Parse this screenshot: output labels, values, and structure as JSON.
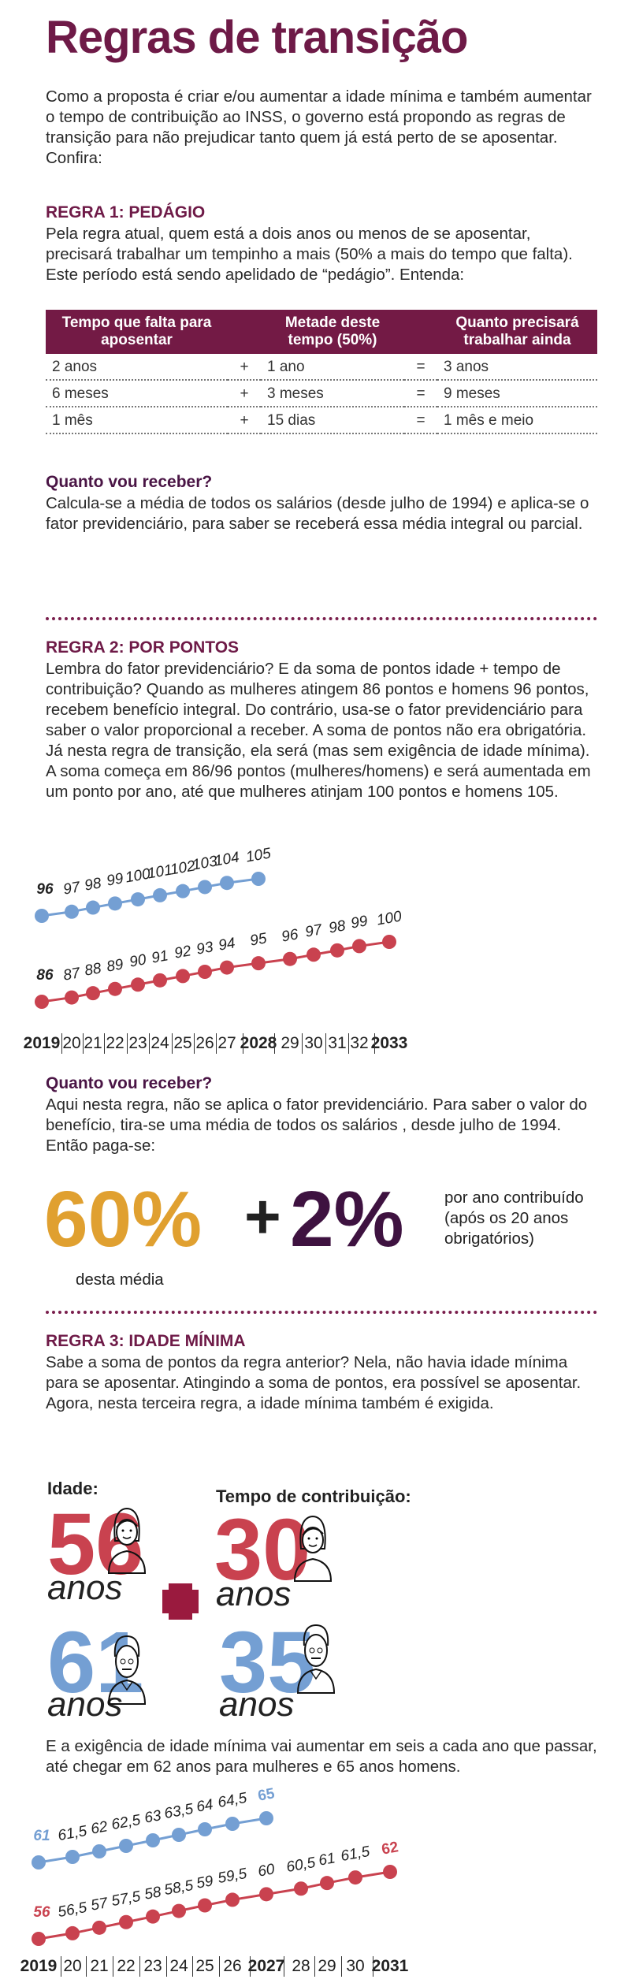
{
  "title": "Regras de transição",
  "intro": "Como a proposta é criar e/ou aumentar a idade mínima e também aumentar o tempo de contribuição ao INSS, o governo está propondo as regras de transição para não prejudicar tanto quem já está perto de se aposentar. Confira:",
  "rule1": {
    "heading": "REGRA 1: PEDÁGIO",
    "text": "Pela regra atual, quem está a dois anos ou menos de se aposentar, precisará trabalhar um tempinho a mais (50% a mais do tempo que falta). Este período está sendo apelidado de “pedágio”. Entenda:",
    "table": {
      "headers": [
        "Tempo que falta para aposentar",
        "Metade deste tempo (50%)",
        "Quanto precisará trabalhar ainda"
      ],
      "rows": [
        [
          "2 anos",
          "+",
          "1 ano",
          "=",
          "3 anos"
        ],
        [
          "6 meses",
          "+",
          "3 meses",
          "=",
          "9 meses"
        ],
        [
          "1 mês",
          "+",
          "15 dias",
          "=",
          "1 mês e meio"
        ]
      ]
    },
    "receive_heading": "Quanto vou receber?",
    "receive_text": "Calcula-se a média de todos os salários (desde julho de 1994) e aplica-se o fator previdenciário, para saber se receberá essa média integral ou parcial."
  },
  "rule2": {
    "heading": "REGRA 2: POR PONTOS",
    "text": "Lembra do fator previdenciário? E da soma de pontos idade + tempo de contribuição? Quando as mulheres atingem 86 pontos e homens 96 pontos, recebem benefício integral. Do contrário, usa-se o fator previdenciário para saber o valor proporcional a receber. A soma de pontos não era obrigatória. Já nesta regra de transição, ela será (mas sem exigência de idade mínima). A soma começa em 86/96 pontos (mulheres/homens) e será aumentada em um ponto por ano, até que mulheres atinjam 100 pontos e homens 105.",
    "receive_heading": "Quanto vou receber?",
    "receive_text": "Aqui nesta regra, não se aplica o fator previdenciário. Para saber o valor do benefício, tira-se uma média de todos os salários , desde julho de 1994. Então paga-se:",
    "pct1": "60%",
    "plus": "+",
    "pct2": "2%",
    "pct1_note": "desta média",
    "pct2_note": "por ano contribuído (após os 20 anos obrigatórios)"
  },
  "rule3": {
    "heading": "REGRA 3: IDADE MÍNIMA",
    "text": "Sabe a soma de pontos da regra anterior? Nela, não havia idade mínima para se aposentar. Atingindo a soma de pontos, era possível se aposentar. Agora, nesta terceira regra, a idade mínima também é exigida.",
    "age_label": "Idade:",
    "contrib_label": "Tempo de contribuição:",
    "age_women": "56",
    "age_men": "61",
    "contrib_women": "30",
    "contrib_men": "35",
    "unit": "anos",
    "text2": "E a exigência de idade mínima vai aumentar em seis a cada ano que passar, até chegar em 62 anos para mulheres e 65 anos homens."
  },
  "colors": {
    "wine": "#6e1a47",
    "women": "#c9424f",
    "men": "#749fd3",
    "orange": "#e0a030",
    "purple": "#3e1240"
  },
  "chart_data": [
    {
      "type": "line",
      "x_labels": [
        "2019",
        "20",
        "21",
        "22",
        "23",
        "24",
        "25",
        "26",
        "27",
        "2028",
        "29",
        "30",
        "31",
        "32",
        "2033"
      ],
      "series": [
        {
          "color": "#749fd3",
          "values": [
            96,
            97,
            98,
            99,
            100,
            101,
            102,
            103,
            104,
            105
          ]
        },
        {
          "color": "#c9424f",
          "values": [
            86,
            87,
            88,
            89,
            90,
            91,
            92,
            93,
            94,
            95,
            96,
            97,
            98,
            99,
            100
          ]
        }
      ]
    },
    {
      "type": "line",
      "x_labels": [
        "2019",
        "20",
        "21",
        "22",
        "23",
        "24",
        "25",
        "26",
        "2027",
        "28",
        "29",
        "30",
        "2031"
      ],
      "series": [
        {
          "color": "#749fd3",
          "values": [
            "61",
            "61,5",
            "62",
            "62,5",
            "63",
            "63,5",
            "64",
            "64,5",
            "65"
          ]
        },
        {
          "color": "#c9424f",
          "values": [
            "56",
            "56,5",
            "57",
            "57,5",
            "58",
            "58,5",
            "59",
            "59,5",
            "60",
            "60,5",
            "61",
            "61,5",
            "62"
          ]
        }
      ]
    }
  ]
}
